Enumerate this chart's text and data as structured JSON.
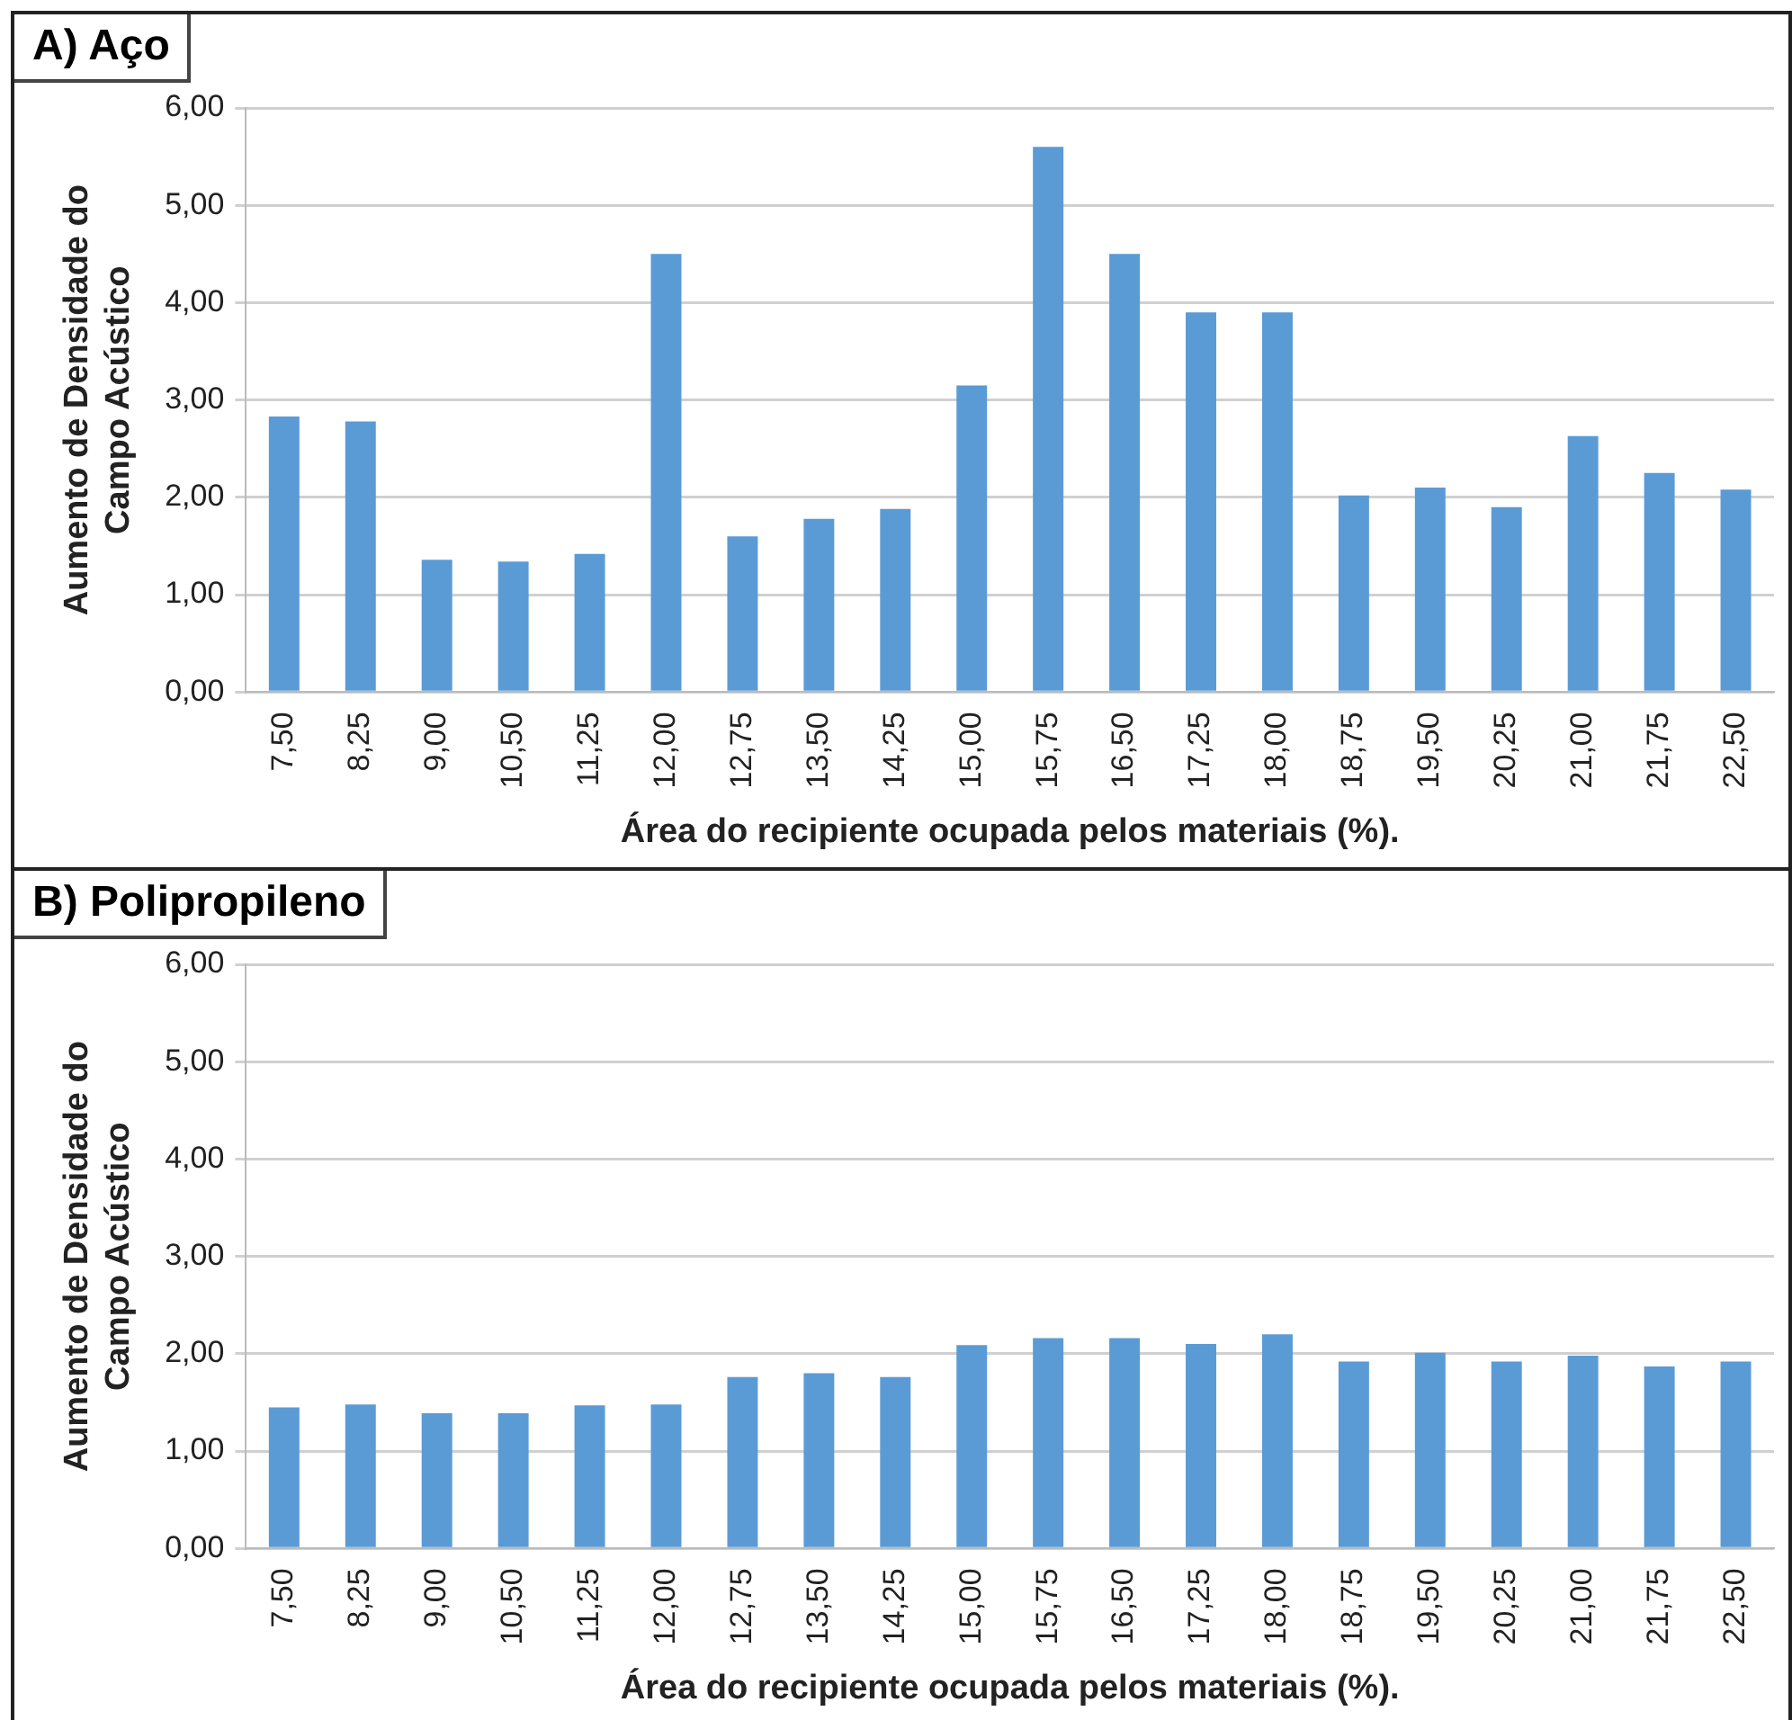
{
  "chart_data": [
    {
      "type": "bar",
      "title": "A) Aço",
      "xlabel": "Área do recipiente ocupada pelos materiais (%).",
      "ylabel": "Aumento de Densidade do Campo Acústico",
      "categories": [
        "7,50",
        "8,25",
        "9,00",
        "10,50",
        "11,25",
        "12,00",
        "12,75",
        "13,50",
        "14,25",
        "15,00",
        "15,75",
        "16,50",
        "17,25",
        "18,00",
        "18,75",
        "19,50",
        "20,25",
        "21,00",
        "21,75",
        "22,50"
      ],
      "values": [
        2.83,
        2.78,
        1.36,
        1.34,
        1.42,
        4.5,
        1.6,
        1.78,
        1.88,
        3.15,
        5.6,
        4.5,
        3.9,
        3.9,
        2.02,
        2.1,
        1.9,
        2.63,
        2.25,
        2.08
      ],
      "color": "#5b9bd5",
      "ylim": [
        0,
        6
      ],
      "yticks": [
        {
          "value": 0,
          "label": "0,00"
        },
        {
          "value": 1,
          "label": "1,00"
        },
        {
          "value": 2,
          "label": "2,00"
        },
        {
          "value": 3,
          "label": "3,00"
        },
        {
          "value": 4,
          "label": "4,00"
        },
        {
          "value": 5,
          "label": "5,00"
        },
        {
          "value": 6,
          "label": "6,00"
        }
      ],
      "grid": "y"
    },
    {
      "type": "bar",
      "title": "B) Polipropileno",
      "xlabel": "Área do recipiente ocupada pelos materiais (%).",
      "ylabel": "Aumento de Densidade do Campo Acústico",
      "categories": [
        "7,50",
        "8,25",
        "9,00",
        "10,50",
        "11,25",
        "12,00",
        "12,75",
        "13,50",
        "14,25",
        "15,00",
        "15,75",
        "16,50",
        "17,25",
        "18,00",
        "18,75",
        "19,50",
        "20,25",
        "21,00",
        "21,75",
        "22,50"
      ],
      "values": [
        1.45,
        1.48,
        1.39,
        1.39,
        1.47,
        1.48,
        1.76,
        1.8,
        1.76,
        2.09,
        2.16,
        2.16,
        2.1,
        2.2,
        1.92,
        2.01,
        1.92,
        1.98,
        1.87,
        1.92
      ],
      "color": "#5b9bd5",
      "ylim": [
        0,
        6
      ],
      "yticks": [
        {
          "value": 0,
          "label": "0,00"
        },
        {
          "value": 1,
          "label": "1,00"
        },
        {
          "value": 2,
          "label": "2,00"
        },
        {
          "value": 3,
          "label": "3,00"
        },
        {
          "value": 4,
          "label": "4,00"
        },
        {
          "value": 5,
          "label": "5,00"
        },
        {
          "value": 6,
          "label": "6,00"
        }
      ],
      "grid": "y"
    }
  ]
}
